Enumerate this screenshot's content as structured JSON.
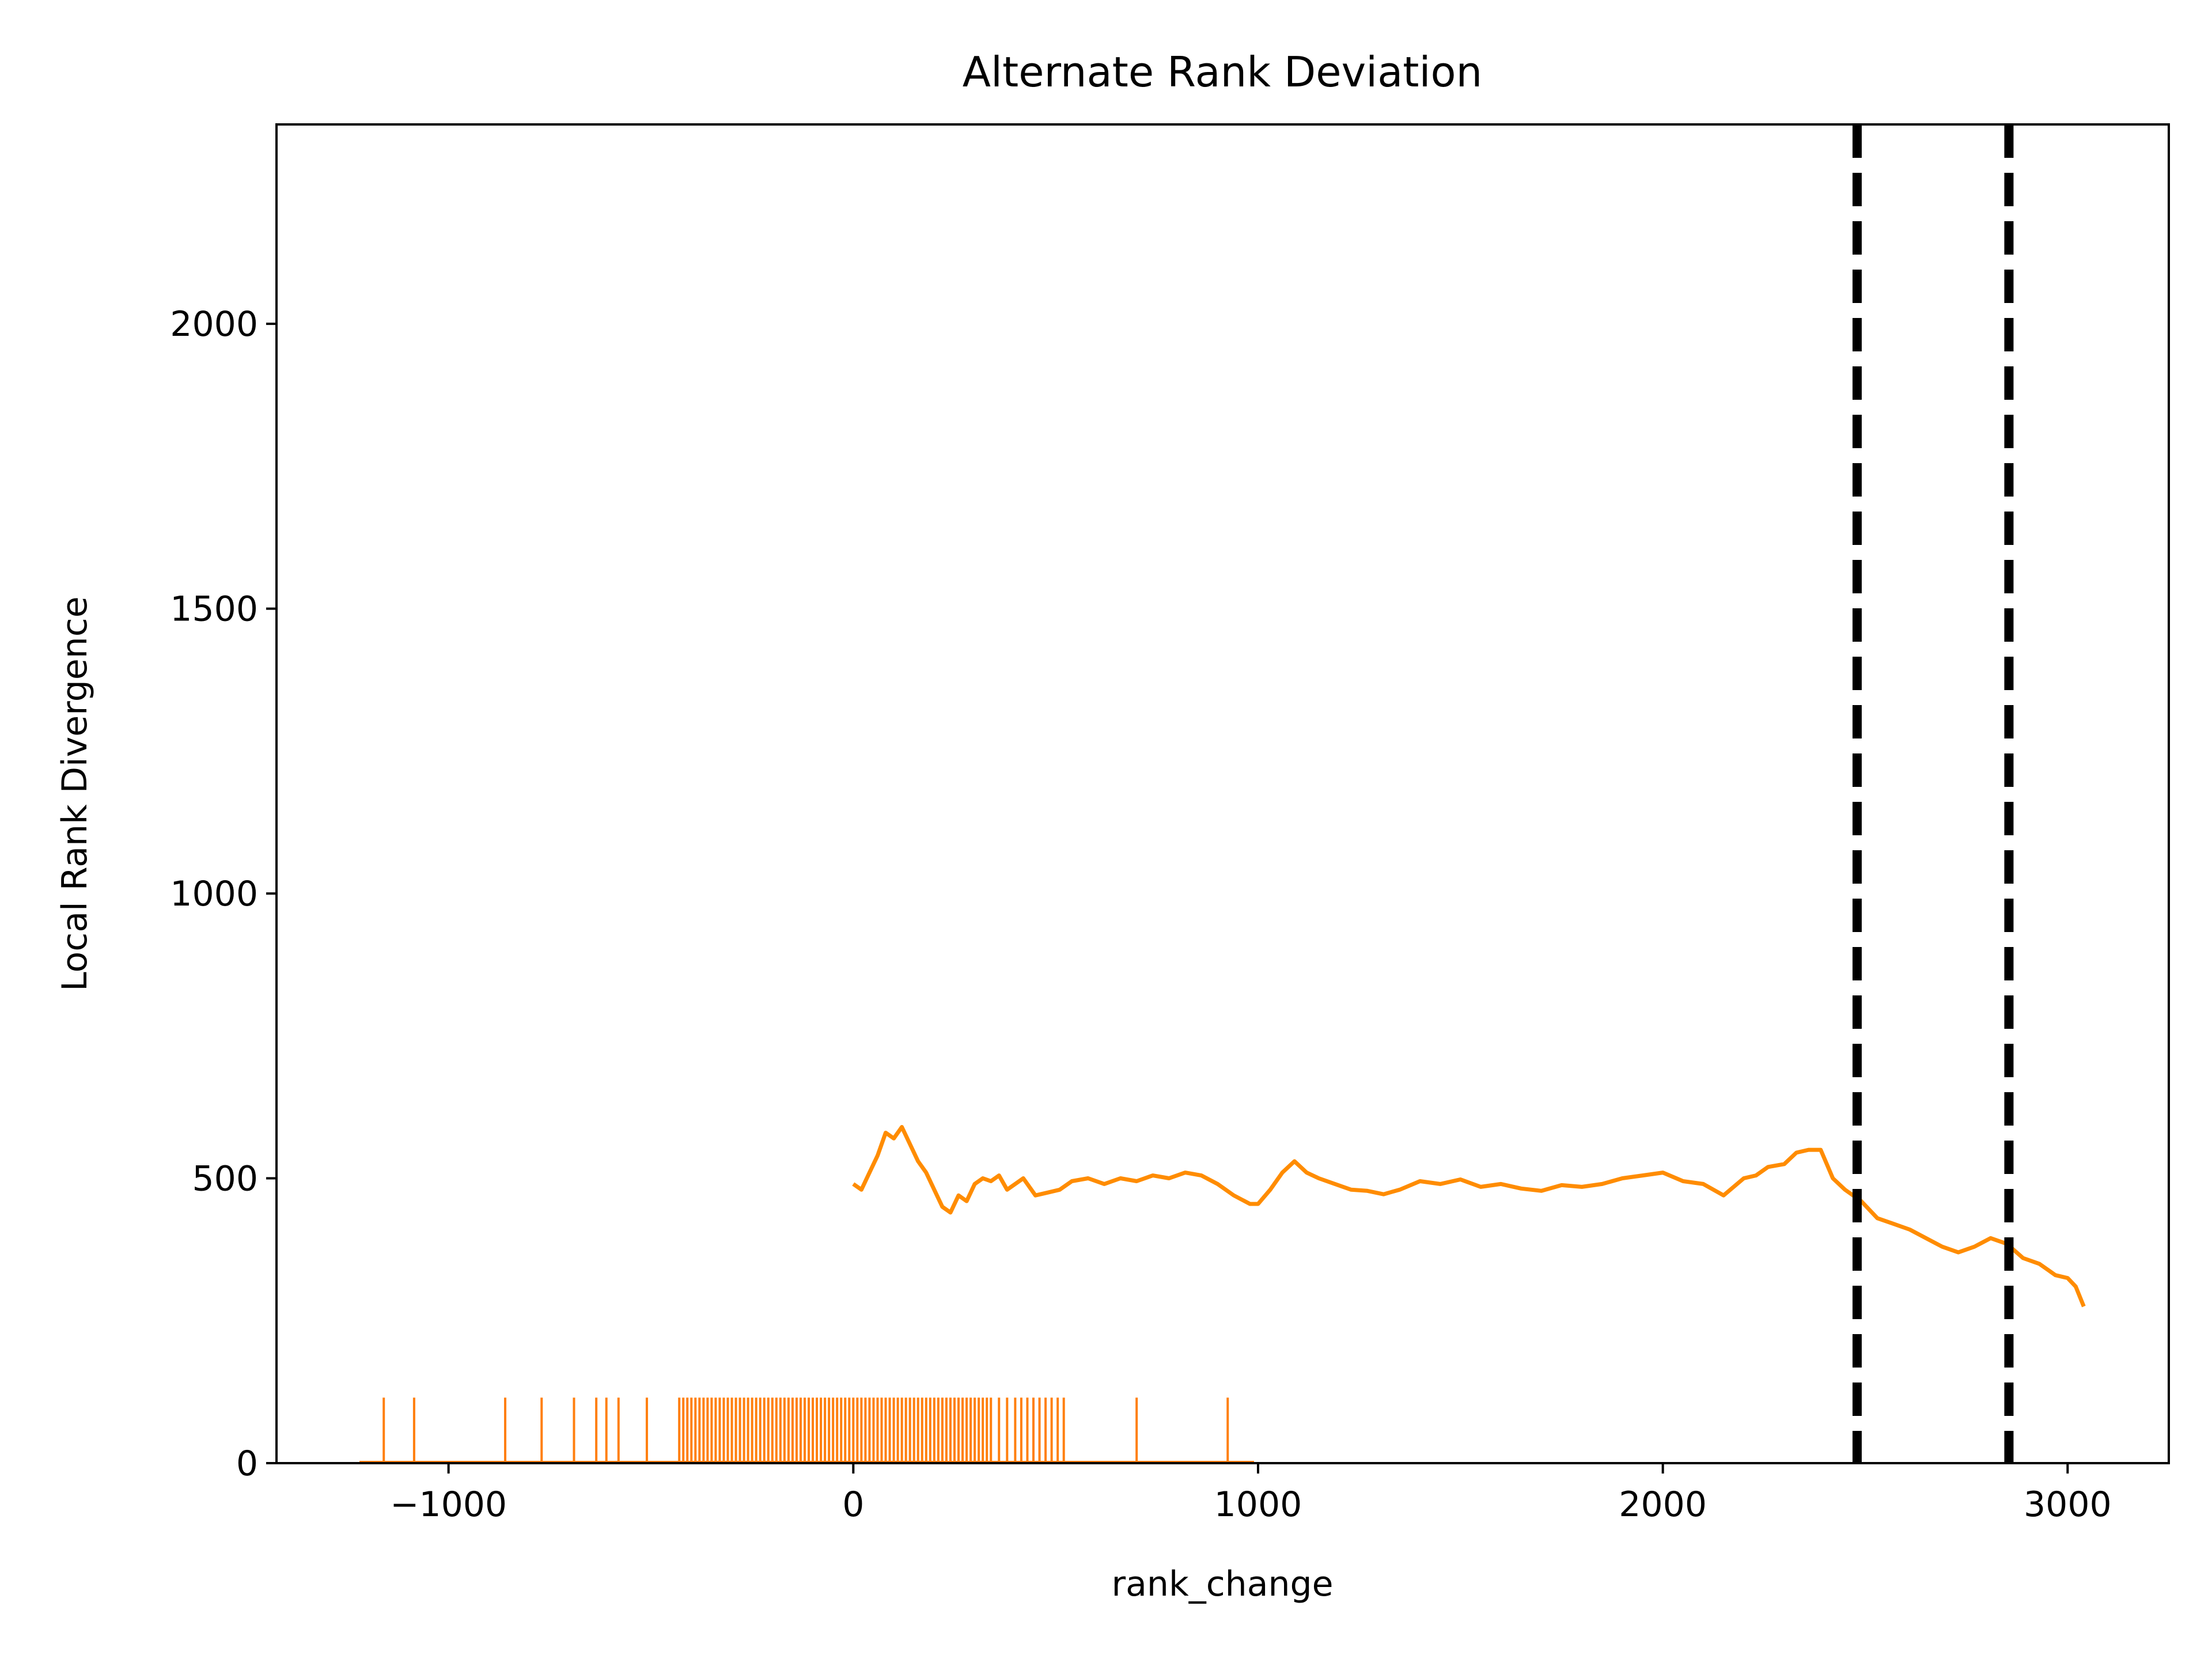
{
  "colors": {
    "series": "#ff8c00",
    "rug": "#ff7f0e",
    "threshold": "#000000",
    "axes": "#000000",
    "background": "#ffffff"
  },
  "chart_data": {
    "type": "line",
    "title": "Alternate Rank Deviation",
    "xlabel": "rank_change",
    "ylabel": "Local Rank Divergence",
    "xlim": [
      -1425,
      3250
    ],
    "ylim": [
      0,
      2350
    ],
    "xticks": [
      -1000,
      0,
      1000,
      2000,
      3000
    ],
    "xtick_labels": [
      "−1000",
      "0",
      "1000",
      "2000",
      "3000"
    ],
    "yticks": [
      0,
      500,
      1000,
      1500,
      2000
    ],
    "ytick_labels": [
      "0",
      "500",
      "1000",
      "1500",
      "2000"
    ],
    "grid": false,
    "legend": "none",
    "series": [
      {
        "x": [
          0,
          20,
          40,
          60,
          80,
          100,
          120,
          140,
          160,
          180,
          200,
          220,
          240,
          260,
          280,
          300,
          320,
          340,
          360,
          380,
          400,
          420,
          450,
          480,
          510,
          540,
          580,
          620,
          660,
          700,
          740,
          780,
          820,
          860,
          900,
          940,
          980,
          1000,
          1030,
          1060,
          1090,
          1120,
          1150,
          1190,
          1230,
          1270,
          1310,
          1350,
          1400,
          1450,
          1500,
          1550,
          1600,
          1650,
          1700,
          1750,
          1800,
          1850,
          1900,
          1950,
          2000,
          2050,
          2100,
          2150,
          2200,
          2230,
          2260,
          2300,
          2330,
          2360,
          2390,
          2420,
          2450,
          2490,
          2530,
          2570,
          2610,
          2650,
          2690,
          2730,
          2770,
          2810,
          2850,
          2890,
          2930,
          2970,
          3000,
          3020,
          3040
        ],
        "y": [
          490,
          480,
          510,
          540,
          580,
          570,
          590,
          560,
          530,
          510,
          480,
          450,
          440,
          470,
          460,
          490,
          500,
          495,
          505,
          480,
          490,
          500,
          470,
          475,
          480,
          495,
          500,
          490,
          500,
          495,
          505,
          500,
          510,
          505,
          490,
          470,
          455,
          455,
          480,
          510,
          530,
          510,
          500,
          490,
          480,
          478,
          472,
          480,
          495,
          490,
          498,
          485,
          490,
          482,
          478,
          488,
          485,
          490,
          500,
          505,
          510,
          495,
          490,
          470,
          500,
          505,
          520,
          525,
          545,
          550,
          550,
          500,
          480,
          460,
          430,
          420,
          410,
          395,
          380,
          370,
          380,
          395,
          385,
          360,
          350,
          330,
          325,
          310,
          275
        ]
      }
    ],
    "vlines": [
      2480,
      2855
    ],
    "rug": {
      "x": [
        -1160,
        -1085,
        -860,
        -770,
        -690,
        -635,
        -610,
        -580,
        -510,
        -430,
        -420,
        -410,
        -400,
        -390,
        -380,
        -370,
        -360,
        -350,
        -340,
        -330,
        -320,
        -310,
        -300,
        -290,
        -280,
        -270,
        -260,
        -250,
        -240,
        -230,
        -220,
        -210,
        -200,
        -190,
        -180,
        -170,
        -160,
        -150,
        -140,
        -130,
        -120,
        -110,
        -100,
        -90,
        -80,
        -70,
        -60,
        -50,
        -40,
        -30,
        -20,
        -10,
        0,
        10,
        20,
        30,
        40,
        50,
        60,
        70,
        80,
        90,
        100,
        110,
        120,
        130,
        140,
        150,
        160,
        170,
        180,
        190,
        200,
        210,
        220,
        230,
        240,
        250,
        260,
        270,
        280,
        290,
        300,
        310,
        320,
        330,
        340,
        360,
        380,
        400,
        415,
        430,
        445,
        460,
        475,
        490,
        505,
        520,
        700,
        925
      ],
      "height": 115,
      "baseline_range": [
        -1220,
        990
      ]
    }
  }
}
